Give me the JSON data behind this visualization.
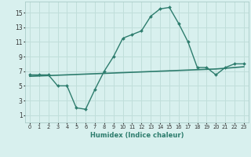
{
  "xlabel": "Humidex (Indice chaleur)",
  "x": [
    0,
    1,
    2,
    3,
    4,
    5,
    6,
    7,
    8,
    9,
    10,
    11,
    12,
    13,
    14,
    15,
    16,
    17,
    18,
    19,
    20,
    21,
    22,
    23
  ],
  "y_curve": [
    6.5,
    6.5,
    6.5,
    5.0,
    5.0,
    2.0,
    1.8,
    4.5,
    7.0,
    9.0,
    11.5,
    12.0,
    12.5,
    14.5,
    15.5,
    15.7,
    13.5,
    11.0,
    7.5,
    7.5,
    6.5,
    7.5,
    8.0,
    8.0
  ],
  "y_line": [
    6.3,
    6.35,
    6.4,
    6.45,
    6.5,
    6.55,
    6.6,
    6.65,
    6.7,
    6.75,
    6.8,
    6.85,
    6.9,
    6.95,
    7.0,
    7.05,
    7.1,
    7.15,
    7.2,
    7.25,
    7.3,
    7.4,
    7.5,
    7.6
  ],
  "line_color": "#2e7d6e",
  "bg_color": "#d8f0ee",
  "grid_color": "#c0deda",
  "ylim": [
    0,
    16.5
  ],
  "yticks": [
    1,
    3,
    5,
    7,
    9,
    11,
    13,
    15
  ],
  "xlim": [
    -0.5,
    23.5
  ],
  "xtick_fontsize": 4.8,
  "ytick_fontsize": 5.5,
  "xlabel_fontsize": 6.0
}
